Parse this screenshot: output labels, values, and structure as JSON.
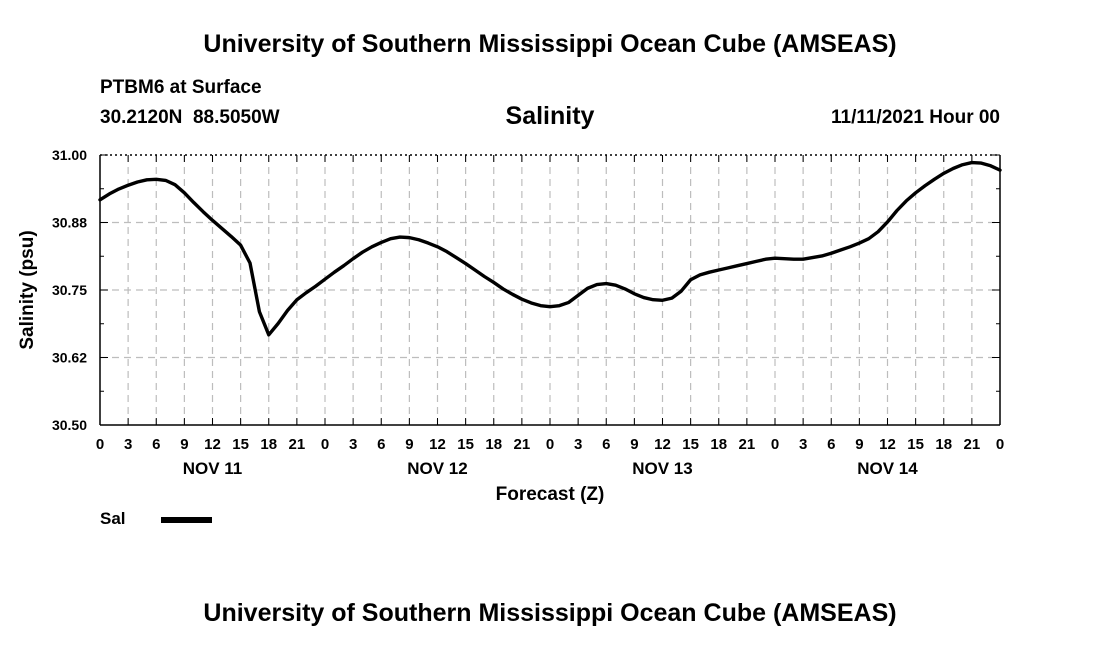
{
  "header": {
    "title": "University of Southern Mississippi Ocean Cube (AMSEAS)",
    "station": "PTBM6 at Surface",
    "coords": "30.2120N  88.5050W",
    "date": "11/11/2021 Hour 00"
  },
  "footer": {
    "title": "University of Southern Mississippi Ocean Cube (AMSEAS)"
  },
  "legend": {
    "label": "Sal",
    "color": "#000000"
  },
  "chart_data": {
    "type": "line",
    "title": "Salinity",
    "xlabel": "Forecast (Z)",
    "ylabel": "Salinity (psu)",
    "xlim": [
      0,
      96
    ],
    "ylim": [
      30.5,
      31.0
    ],
    "yticks": [
      "30.50",
      "30.62",
      "30.75",
      "30.88",
      "31.00"
    ],
    "ytick_values": [
      30.5,
      30.625,
      30.75,
      30.875,
      31.0
    ],
    "xtick_labels": [
      "0",
      "3",
      "6",
      "9",
      "12",
      "15",
      "18",
      "21",
      "0",
      "3",
      "6",
      "9",
      "12",
      "15",
      "18",
      "21",
      "0",
      "3",
      "6",
      "9",
      "12",
      "15",
      "18",
      "21",
      "0",
      "3",
      "6",
      "9",
      "12",
      "15",
      "18",
      "21",
      "0"
    ],
    "day_labels": [
      {
        "label": "NOV 11",
        "hour": 12
      },
      {
        "label": "NOV 12",
        "hour": 36
      },
      {
        "label": "NOV 13",
        "hour": 60
      },
      {
        "label": "NOV 14",
        "hour": 84
      }
    ],
    "grid": true,
    "series": [
      {
        "name": "Sal",
        "x": [
          0,
          1,
          2,
          3,
          4,
          5,
          6,
          7,
          8,
          9,
          10,
          11,
          12,
          13,
          14,
          15,
          16,
          17,
          18,
          19,
          20,
          21,
          22,
          23,
          24,
          25,
          26,
          27,
          28,
          29,
          30,
          31,
          32,
          33,
          34,
          35,
          36,
          37,
          38,
          39,
          40,
          41,
          42,
          43,
          44,
          45,
          46,
          47,
          48,
          49,
          50,
          51,
          52,
          53,
          54,
          55,
          56,
          57,
          58,
          59,
          60,
          61,
          62,
          63,
          64,
          65,
          66,
          67,
          68,
          69,
          70,
          71,
          72,
          73,
          74,
          75,
          76,
          77,
          78,
          79,
          80,
          81,
          82,
          83,
          84,
          85,
          86,
          87,
          88,
          89,
          90,
          91,
          92,
          93,
          94,
          95,
          96
        ],
        "values": [
          30.917,
          30.928,
          30.937,
          30.944,
          30.95,
          30.954,
          30.955,
          30.953,
          30.945,
          30.93,
          30.912,
          30.895,
          30.879,
          30.864,
          30.849,
          30.833,
          30.8,
          30.71,
          30.667,
          30.688,
          30.712,
          30.732,
          30.745,
          30.757,
          30.77,
          30.783,
          30.795,
          30.808,
          30.82,
          30.83,
          30.838,
          30.845,
          30.848,
          30.847,
          30.843,
          30.837,
          30.83,
          30.821,
          30.81,
          30.799,
          30.787,
          30.775,
          30.764,
          30.752,
          30.742,
          30.733,
          30.726,
          30.721,
          30.719,
          30.721,
          30.727,
          30.74,
          30.753,
          30.76,
          30.762,
          30.759,
          30.752,
          30.743,
          30.736,
          30.732,
          30.731,
          30.735,
          30.748,
          30.769,
          30.778,
          30.783,
          30.787,
          30.791,
          30.795,
          30.799,
          30.803,
          30.807,
          30.809,
          30.808,
          30.807,
          30.807,
          30.81,
          30.813,
          30.818,
          30.824,
          30.83,
          30.837,
          30.845,
          30.858,
          30.876,
          30.897,
          30.915,
          30.93,
          30.943,
          30.955,
          30.966,
          30.975,
          30.982,
          30.986,
          30.985,
          30.98,
          30.972
        ]
      }
    ]
  }
}
